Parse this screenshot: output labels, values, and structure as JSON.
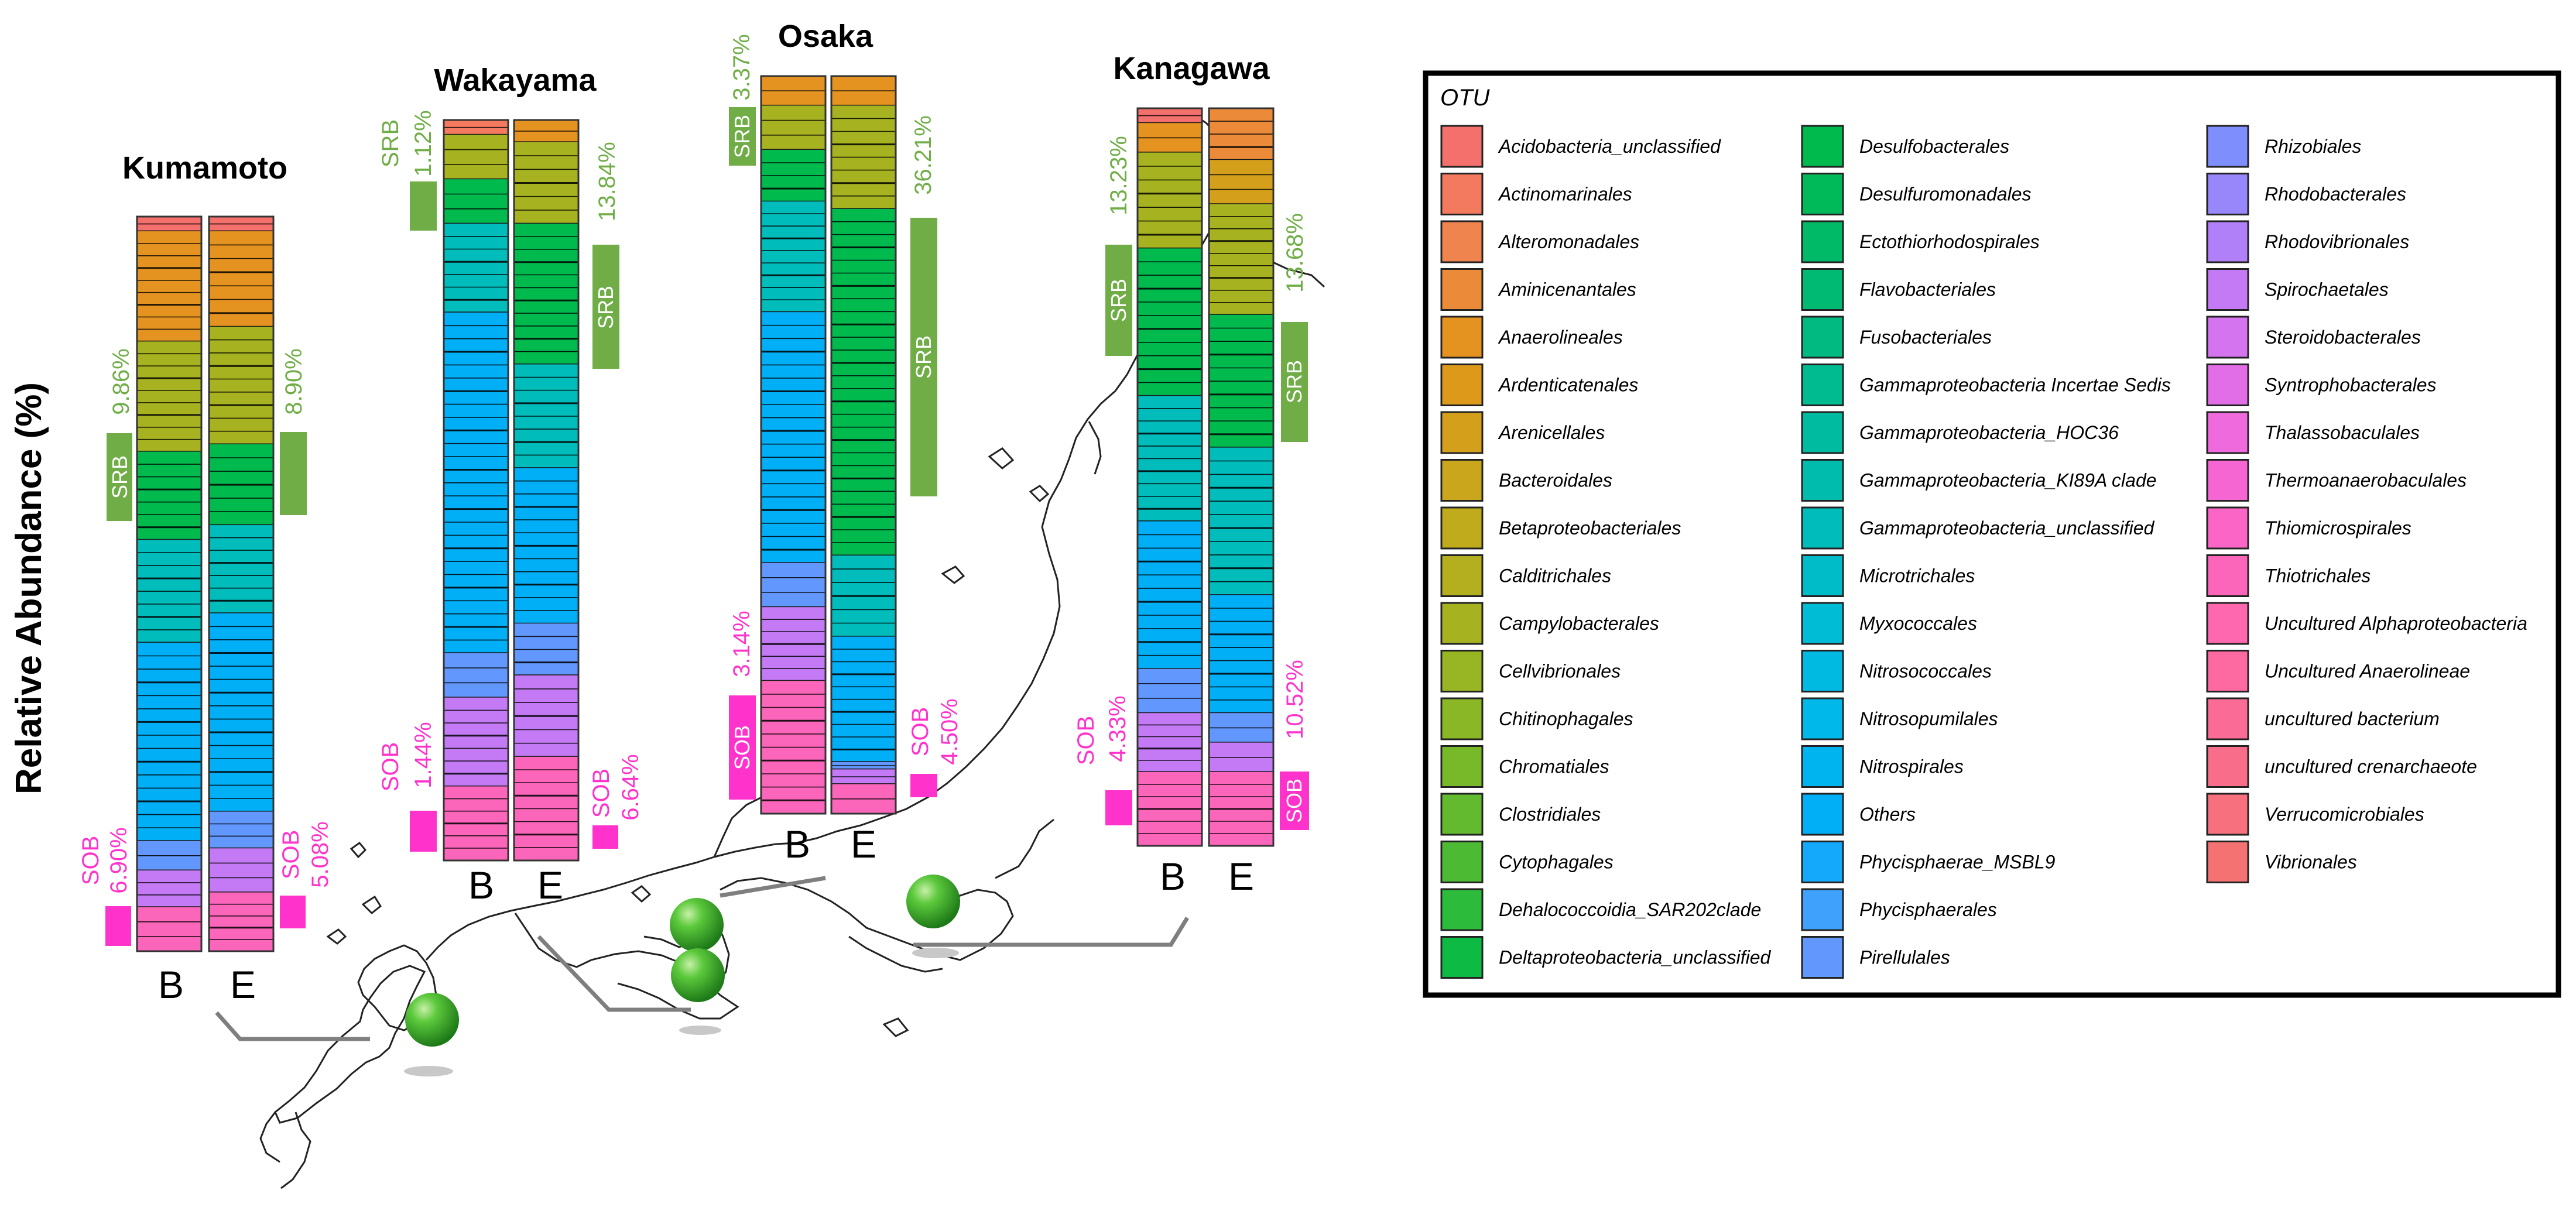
{
  "chart_data": {
    "type": "bar",
    "stacked": true,
    "normalized": true,
    "ylabel": "Relative Abundance (%)",
    "categories": [
      "B",
      "E"
    ],
    "sites": [
      {
        "name": "Kumamoto",
        "srb": {
          "B": "9.86%",
          "E": "8.90%"
        },
        "sob": {
          "B": "6.90%",
          "E": "5.08%"
        },
        "bars": [
          {
            "label": "B",
            "composition": [
              {
                "order": "Acidobacteria_unclassified",
                "share": 0.02
              },
              {
                "order": "Anaerolineales",
                "share": 0.15
              },
              {
                "order": "Campylobacterales",
                "share": 0.15
              },
              {
                "order": "Desulfobacterales",
                "share": 0.12
              },
              {
                "order": "Gammaproteobacteria_unclassified",
                "share": 0.14
              },
              {
                "order": "Others",
                "share": 0.27
              },
              {
                "order": "Pirellulales",
                "share": 0.04
              },
              {
                "order": "Spirochaetales",
                "share": 0.05
              },
              {
                "order": "Thiotrichales",
                "share": 0.06
              }
            ]
          },
          {
            "label": "E",
            "composition": [
              {
                "order": "Acidobacteria_unclassified",
                "share": 0.02
              },
              {
                "order": "Anaerolineales",
                "share": 0.13
              },
              {
                "order": "Campylobacterales",
                "share": 0.16
              },
              {
                "order": "Desulfobacterales",
                "share": 0.11
              },
              {
                "order": "Gammaproteobacteria_unclassified",
                "share": 0.12
              },
              {
                "order": "Others",
                "share": 0.27
              },
              {
                "order": "Pirellulales",
                "share": 0.05
              },
              {
                "order": "Spirochaetales",
                "share": 0.06
              },
              {
                "order": "Thiotrichales",
                "share": 0.08
              }
            ]
          }
        ]
      },
      {
        "name": "Wakayama",
        "srb": {
          "B": "1.12%",
          "E": "13.84%"
        },
        "sob": {
          "B": "1.44%",
          "E": "6.64%"
        },
        "bars": [
          {
            "label": "B",
            "composition": [
              {
                "order": "Actinomarinales",
                "share": 0.02
              },
              {
                "order": "Campylobacterales",
                "share": 0.06
              },
              {
                "order": "Desulfobacterales",
                "share": 0.06
              },
              {
                "order": "Gammaproteobacteria_unclassified",
                "share": 0.12
              },
              {
                "order": "Others",
                "share": 0.46
              },
              {
                "order": "Pirellulales",
                "share": 0.06
              },
              {
                "order": "Spirochaetales",
                "share": 0.12
              },
              {
                "order": "Thiotrichales",
                "share": 0.1
              }
            ]
          },
          {
            "label": "E",
            "composition": [
              {
                "order": "Anaerolineales",
                "share": 0.03
              },
              {
                "order": "Campylobacterales",
                "share": 0.11
              },
              {
                "order": "Desulfobacterales",
                "share": 0.19
              },
              {
                "order": "Gammaproteobacteria_unclassified",
                "share": 0.14
              },
              {
                "order": "Others",
                "share": 0.21
              },
              {
                "order": "Pirellulales",
                "share": 0.07
              },
              {
                "order": "Spirochaetales",
                "share": 0.11
              },
              {
                "order": "Thiotrichales",
                "share": 0.14
              }
            ]
          }
        ]
      },
      {
        "name": "Osaka",
        "srb": {
          "B": "3.37%",
          "E": "36.21%"
        },
        "sob": {
          "B": "3.14%",
          "E": "4.50%"
        },
        "bars": [
          {
            "label": "B",
            "composition": [
              {
                "order": "Anaerolineales",
                "share": 0.04
              },
              {
                "order": "Campylobacterales",
                "share": 0.06
              },
              {
                "order": "Desulfobacterales",
                "share": 0.07
              },
              {
                "order": "Gammaproteobacteria_unclassified",
                "share": 0.15
              },
              {
                "order": "Others",
                "share": 0.34
              },
              {
                "order": "Pirellulales",
                "share": 0.06
              },
              {
                "order": "Spirochaetales",
                "share": 0.1
              },
              {
                "order": "Thiotrichales",
                "share": 0.18
              }
            ]
          },
          {
            "label": "E",
            "composition": [
              {
                "order": "Anaerolineales",
                "share": 0.04
              },
              {
                "order": "Campylobacterales",
                "share": 0.14
              },
              {
                "order": "Desulfobacterales",
                "share": 0.47
              },
              {
                "order": "Gammaproteobacteria_unclassified",
                "share": 0.11
              },
              {
                "order": "Others",
                "share": 0.17
              },
              {
                "order": "Pirellulales",
                "share": 0.01
              },
              {
                "order": "Spirochaetales",
                "share": 0.02
              },
              {
                "order": "Thiotrichales",
                "share": 0.04
              }
            ]
          }
        ]
      },
      {
        "name": "Kanagawa",
        "srb": {
          "B": "13.23%",
          "E": "13.68%"
        },
        "sob": {
          "B": "4.33%",
          "E": "10.52%"
        },
        "bars": [
          {
            "label": "B",
            "composition": [
              {
                "order": "Acidobacteria_unclassified",
                "share": 0.02
              },
              {
                "order": "Anaerolineales",
                "share": 0.04
              },
              {
                "order": "Campylobacterales",
                "share": 0.13
              },
              {
                "order": "Desulfobacterales",
                "share": 0.2
              },
              {
                "order": "Gammaproteobacteria_unclassified",
                "share": 0.17
              },
              {
                "order": "Others",
                "share": 0.2
              },
              {
                "order": "Pirellulales",
                "share": 0.06
              },
              {
                "order": "Spirochaetales",
                "share": 0.08
              },
              {
                "order": "Thiotrichales",
                "share": 0.1
              }
            ]
          },
          {
            "label": "E",
            "composition": [
              {
                "order": "Aminicenantales",
                "share": 0.07
              },
              {
                "order": "Arenicellales",
                "share": 0.06
              },
              {
                "order": "Campylobacterales",
                "share": 0.15
              },
              {
                "order": "Desulfobacterales",
                "share": 0.18
              },
              {
                "order": "Gammaproteobacteria_unclassified",
                "share": 0.2
              },
              {
                "order": "Others",
                "share": 0.16
              },
              {
                "order": "Pirellulales",
                "share": 0.04
              },
              {
                "order": "Spirochaetales",
                "share": 0.04
              },
              {
                "order": "Thiotrichales",
                "share": 0.1
              }
            ]
          }
        ]
      }
    ],
    "legend": {
      "title": "OTU",
      "placement": "right",
      "entries": [
        {
          "name": "Acidobacteria_unclassified",
          "color": "#F4706C"
        },
        {
          "name": "Actinomarinales",
          "color": "#F37A5E"
        },
        {
          "name": "Alteromonadales",
          "color": "#F0844E"
        },
        {
          "name": "Aminicenantales",
          "color": "#EB8B3A"
        },
        {
          "name": "Anaerolineales",
          "color": "#E59320"
        },
        {
          "name": "Ardenticatenales",
          "color": "#DD9A1A"
        },
        {
          "name": "Arenicellales",
          "color": "#D4A01C"
        },
        {
          "name": "Bacteroidales",
          "color": "#CAA61C"
        },
        {
          "name": "Betaproteobacteriales",
          "color": "#BFAB1C"
        },
        {
          "name": "Calditrichales",
          "color": "#B3AF1E"
        },
        {
          "name": "Campylobacterales",
          "color": "#A6B220"
        },
        {
          "name": "Cellvibrionales",
          "color": "#98B523"
        },
        {
          "name": "Chitinophagales",
          "color": "#89B726"
        },
        {
          "name": "Chromatiales",
          "color": "#78B92A"
        },
        {
          "name": "Clostridiales",
          "color": "#64BA2E"
        },
        {
          "name": "Cytophagales",
          "color": "#4CBB33"
        },
        {
          "name": "Dehalococcoidia_SAR202clade",
          "color": "#2CBB3A"
        },
        {
          "name": "Deltaproteobacteria_unclassified",
          "color": "#0DBB44"
        },
        {
          "name": "Desulfobacterales",
          "color": "#00BA4E"
        },
        {
          "name": "Desulfuromonadales",
          "color": "#00BA5A"
        },
        {
          "name": "Ectothiorhodospirales",
          "color": "#00BA67"
        },
        {
          "name": "Flavobacteriales",
          "color": "#00BA74"
        },
        {
          "name": "Fusobacteriales",
          "color": "#00BA82"
        },
        {
          "name": "Gammaproteobacteria Incertae Sedis",
          "color": "#00BA90"
        },
        {
          "name": "Gammaproteobacteria_HOC36",
          "color": "#00BB9F"
        },
        {
          "name": "Gammaproteobacteria_KI89A clade",
          "color": "#00BCAD"
        },
        {
          "name": "Gammaproteobacteria_unclassified",
          "color": "#00BCBB"
        },
        {
          "name": "Microtrichales",
          "color": "#00BCC8"
        },
        {
          "name": "Myxococcales",
          "color": "#00BCD5"
        },
        {
          "name": "Nitrosococcales",
          "color": "#00BAE1"
        },
        {
          "name": "Nitrosopumilales",
          "color": "#00B8EA"
        },
        {
          "name": "Nitrospirales",
          "color": "#00B4F0"
        },
        {
          "name": "Others",
          "color": "#00AFF6"
        },
        {
          "name": "Phycisphaerae_MSBL9",
          "color": "#14A9FA"
        },
        {
          "name": "Phycisphaerales",
          "color": "#3FA1FC"
        },
        {
          "name": "Pirellulales",
          "color": "#6297FD"
        },
        {
          "name": "Rhizobiales",
          "color": "#7E8FFD"
        },
        {
          "name": "Rhodobacterales",
          "color": "#9886FB"
        },
        {
          "name": "Rhodovibrionales",
          "color": "#AF80F8"
        },
        {
          "name": "Spirochaetales",
          "color": "#C37AF4"
        },
        {
          "name": "Steroidobacterales",
          "color": "#D474EE"
        },
        {
          "name": "Syntrophobacterales",
          "color": "#E26EE7"
        },
        {
          "name": "Thalassobaculales",
          "color": "#EE6ADD"
        },
        {
          "name": "Thermoanaerobaculales",
          "color": "#F566D2"
        },
        {
          "name": "Thiomicrospirales",
          "color": "#FA65C6"
        },
        {
          "name": "Thiotrichales",
          "color": "#FC66BA"
        },
        {
          "name": "Uncultured Alphaproteobacteria",
          "color": "#FD68AE"
        },
        {
          "name": "Uncultured Anaerolineae",
          "color": "#FC6AA1"
        },
        {
          "name": "uncultured bacterium",
          "color": "#FA6C95"
        },
        {
          "name": "uncultured crenarchaeote",
          "color": "#F86E8A"
        },
        {
          "name": "Verrucomicrobiales",
          "color": "#F6707E"
        },
        {
          "name": "Vibrionales",
          "color": "#F47372"
        }
      ]
    },
    "annotation_labels": {
      "srb": "SRB",
      "sob": "SOB"
    },
    "annotation_colors": {
      "srb": "#70AD47",
      "sob": "#FF33CC"
    }
  }
}
